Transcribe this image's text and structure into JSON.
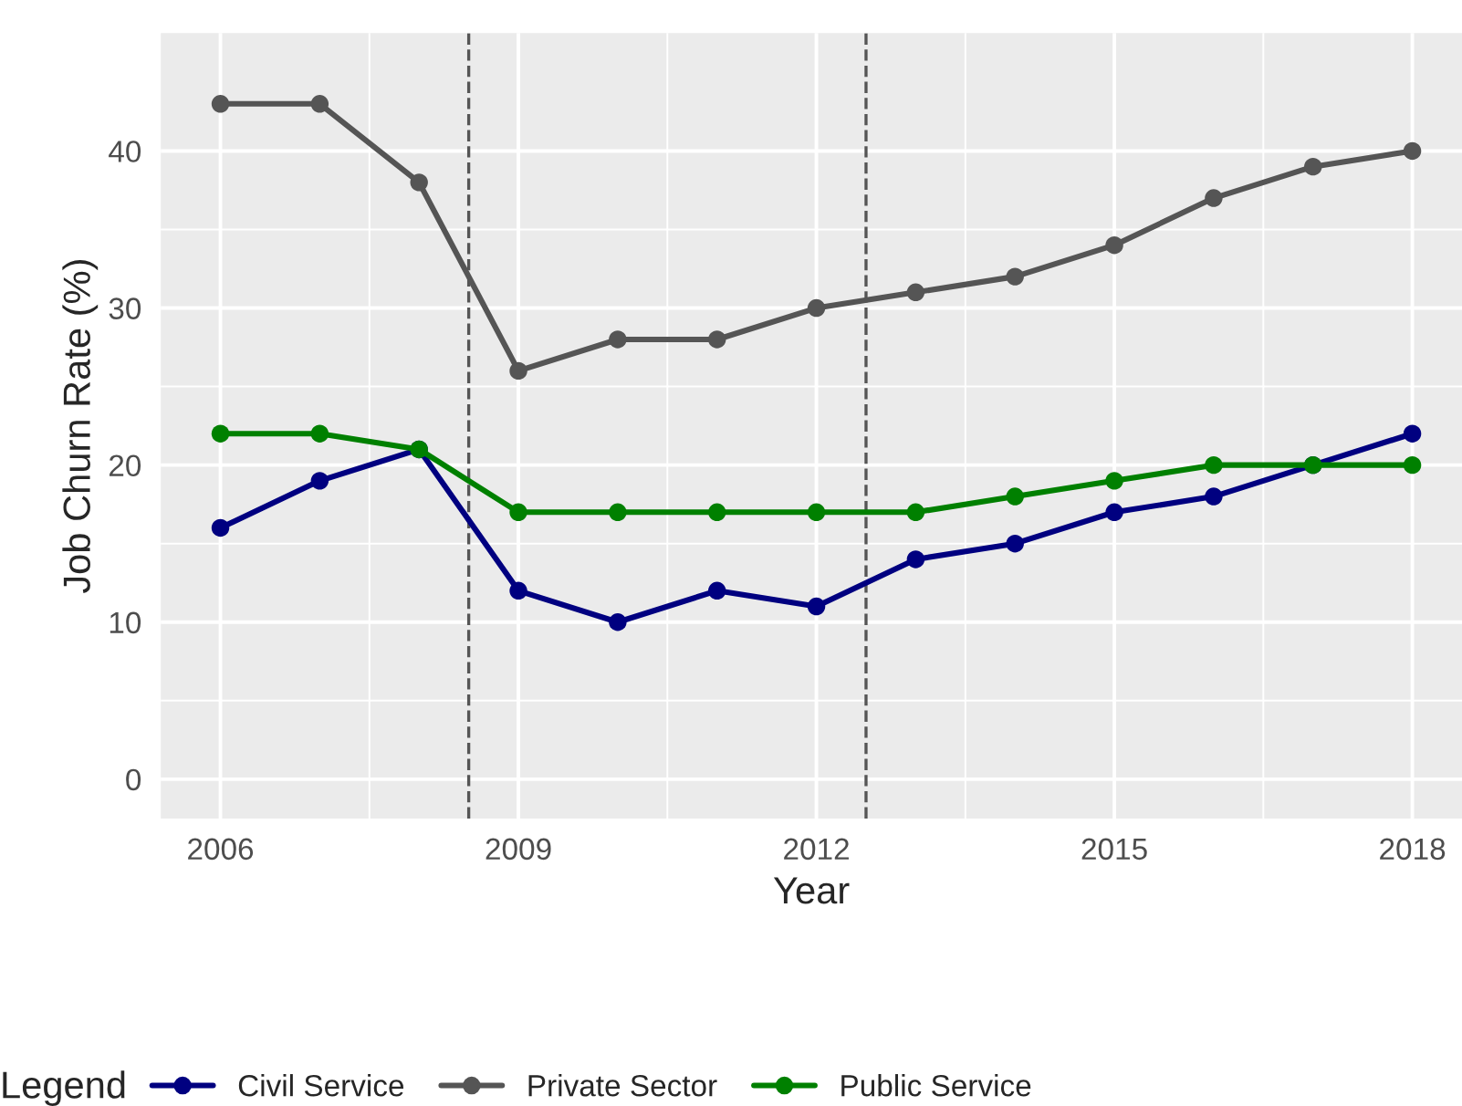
{
  "chart_data": {
    "type": "line",
    "xlabel": "Year",
    "ylabel": "Job Churn Rate (%)",
    "legend_title": "Legend",
    "x": [
      2006,
      2007,
      2008,
      2009,
      2010,
      2011,
      2012,
      2013,
      2014,
      2015,
      2016,
      2017,
      2018
    ],
    "series": [
      {
        "name": "Civil Service",
        "color": "#000080",
        "values": [
          16,
          19,
          21,
          12,
          10,
          12,
          11,
          14,
          15,
          17,
          18,
          20,
          22
        ]
      },
      {
        "name": "Private Sector",
        "color": "#555555",
        "values": [
          43,
          43,
          38,
          26,
          28,
          28,
          30,
          31,
          32,
          34,
          37,
          39,
          40
        ]
      },
      {
        "name": "Public Service",
        "color": "#008000",
        "values": [
          22,
          22,
          21,
          17,
          17,
          17,
          17,
          17,
          18,
          19,
          20,
          20,
          20
        ]
      }
    ],
    "xlim": [
      2005.4,
      2018.5
    ],
    "xticks": [
      2006,
      2009,
      2012,
      2015,
      2018
    ],
    "ylim": [
      -2.5,
      47.5
    ],
    "yticks": [
      0,
      10,
      20,
      30,
      40
    ],
    "ref_lines": [
      {
        "axis": "x",
        "value": 2008.5,
        "line_style": "dashed",
        "color": "#555555"
      },
      {
        "axis": "x",
        "value": 2012.5,
        "line_style": "dashed",
        "color": "#555555"
      }
    ],
    "grid": true,
    "legend": "bottom",
    "marker": "circle",
    "line_style": "solid"
  }
}
